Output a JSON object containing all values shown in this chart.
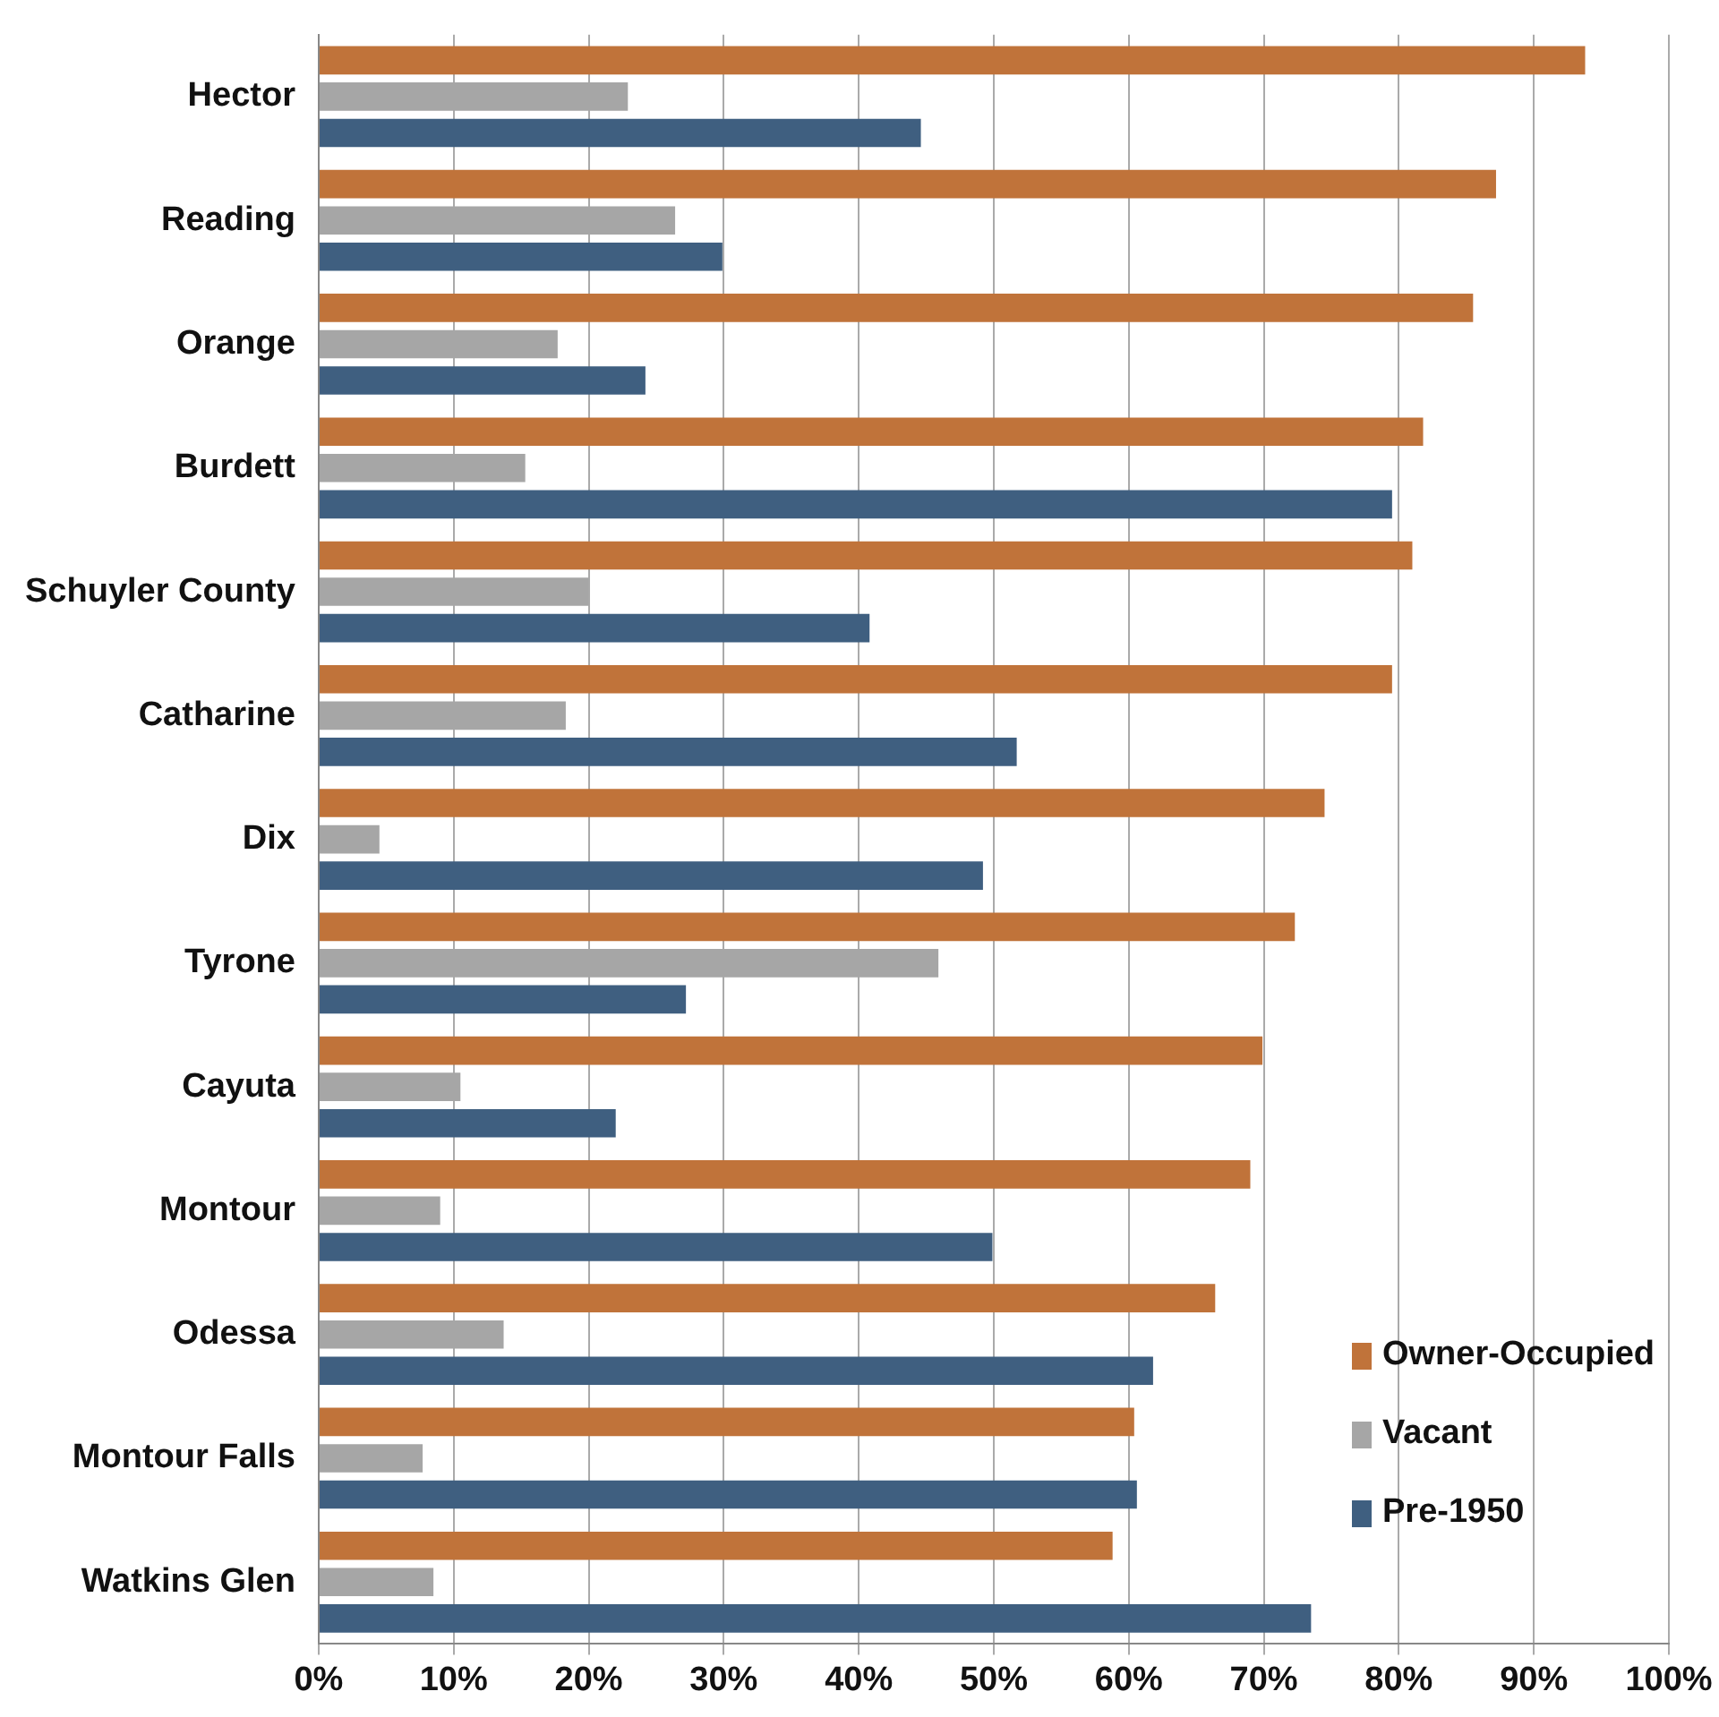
{
  "chart_data": {
    "type": "bar",
    "orientation": "horizontal",
    "categories": [
      "Hector",
      "Reading",
      "Orange",
      "Burdett",
      "Schuyler County",
      "Catharine",
      "Dix",
      "Tyrone",
      "Cayuta",
      "Montour",
      "Odessa",
      "Montour Falls",
      "Watkins Glen"
    ],
    "series": [
      {
        "name": "Owner-Occupied",
        "color": "#c0733a",
        "values": [
          93.8,
          87.2,
          85.5,
          81.8,
          81.0,
          79.5,
          74.5,
          72.3,
          69.9,
          69.0,
          66.4,
          60.4,
          58.8
        ]
      },
      {
        "name": "Vacant",
        "color": "#a6a6a6",
        "values": [
          22.9,
          26.4,
          17.7,
          15.3,
          20.0,
          18.3,
          4.5,
          45.9,
          10.5,
          9.0,
          13.7,
          7.7,
          8.5
        ]
      },
      {
        "name": "Pre-1950",
        "color": "#3f5f80",
        "values": [
          44.6,
          29.9,
          24.2,
          79.5,
          40.8,
          51.7,
          49.2,
          27.2,
          22.0,
          49.9,
          61.8,
          60.6,
          73.5
        ]
      }
    ],
    "xlim": [
      0,
      100
    ],
    "xticks": [
      {
        "value": 0,
        "label": "0%"
      },
      {
        "value": 10,
        "label": "10%"
      },
      {
        "value": 20,
        "label": "20%"
      },
      {
        "value": 30,
        "label": "30%"
      },
      {
        "value": 40,
        "label": "40%"
      },
      {
        "value": 50,
        "label": "50%"
      },
      {
        "value": 60,
        "label": "60%"
      },
      {
        "value": 70,
        "label": "70%"
      },
      {
        "value": 80,
        "label": "80%"
      },
      {
        "value": 90,
        "label": "90%"
      },
      {
        "value": 100,
        "label": "100%"
      }
    ],
    "grid": "x",
    "legend": "bottom right"
  }
}
